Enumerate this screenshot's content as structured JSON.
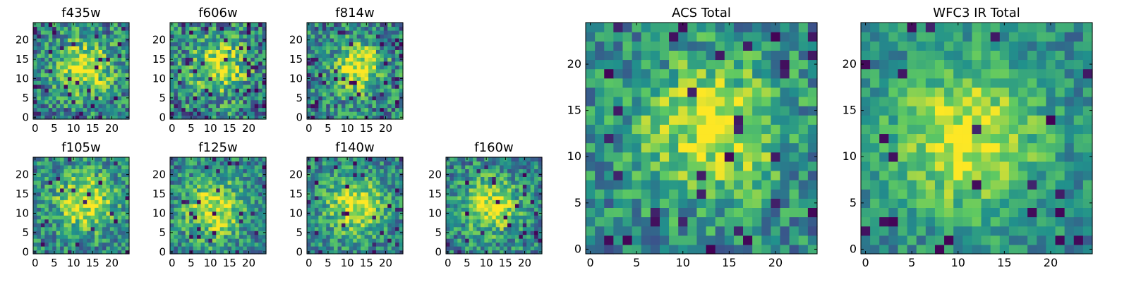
{
  "figure": {
    "colormap": "viridis",
    "colormap_stops": [
      "#440154",
      "#3b528b",
      "#21918c",
      "#5ec962",
      "#fde725"
    ]
  },
  "chart_data": [
    {
      "type": "heatmap",
      "title": "f435w",
      "grid_size": 25,
      "xlim": [
        0,
        24
      ],
      "ylim": [
        0,
        24
      ],
      "xticks": [
        0,
        5,
        10,
        15,
        20
      ],
      "yticks": [
        0,
        5,
        10,
        15,
        20
      ],
      "peak": [
        13,
        13
      ],
      "peak_width": 5.0,
      "noise": 0.3,
      "dark_fraction": 0.05,
      "seed": 11
    },
    {
      "type": "heatmap",
      "title": "f606w",
      "grid_size": 25,
      "xlim": [
        0,
        24
      ],
      "ylim": [
        0,
        24
      ],
      "xticks": [
        0,
        5,
        10,
        15,
        20
      ],
      "yticks": [
        0,
        5,
        10,
        15,
        20
      ],
      "peak": [
        12,
        13
      ],
      "peak_width": 5.0,
      "noise": 0.32,
      "dark_fraction": 0.07,
      "seed": 23
    },
    {
      "type": "heatmap",
      "title": "f814w",
      "grid_size": 25,
      "xlim": [
        0,
        24
      ],
      "ylim": [
        0,
        24
      ],
      "xticks": [
        0,
        5,
        10,
        15,
        20
      ],
      "yticks": [
        0,
        5,
        10,
        15,
        20
      ],
      "peak": [
        13,
        13
      ],
      "peak_width": 4.5,
      "noise": 0.3,
      "dark_fraction": 0.06,
      "seed": 37
    },
    {
      "type": "heatmap",
      "title": "f105w",
      "grid_size": 25,
      "xlim": [
        0,
        24
      ],
      "ylim": [
        0,
        24
      ],
      "xticks": [
        0,
        5,
        10,
        15,
        20
      ],
      "yticks": [
        0,
        5,
        10,
        15,
        20
      ],
      "peak": [
        13,
        13
      ],
      "peak_width": 5.5,
      "noise": 0.26,
      "dark_fraction": 0.04,
      "seed": 41
    },
    {
      "type": "heatmap",
      "title": "f125w",
      "grid_size": 25,
      "xlim": [
        0,
        24
      ],
      "ylim": [
        0,
        24
      ],
      "xticks": [
        0,
        5,
        10,
        15,
        20
      ],
      "yticks": [
        0,
        5,
        10,
        15,
        20
      ],
      "peak": [
        11,
        11
      ],
      "peak_width": 5.5,
      "noise": 0.26,
      "dark_fraction": 0.05,
      "seed": 53
    },
    {
      "type": "heatmap",
      "title": "f140w",
      "grid_size": 25,
      "xlim": [
        0,
        24
      ],
      "ylim": [
        0,
        24
      ],
      "xticks": [
        0,
        5,
        10,
        15,
        20
      ],
      "yticks": [
        0,
        5,
        10,
        15,
        20
      ],
      "peak": [
        12,
        12
      ],
      "peak_width": 5.5,
      "noise": 0.24,
      "dark_fraction": 0.04,
      "seed": 67
    },
    {
      "type": "heatmap",
      "title": "f160w",
      "grid_size": 25,
      "xlim": [
        0,
        24
      ],
      "ylim": [
        0,
        24
      ],
      "xticks": [
        0,
        5,
        10,
        15,
        20
      ],
      "yticks": [
        0,
        5,
        10,
        15,
        20
      ],
      "peak": [
        11,
        12
      ],
      "peak_width": 5.0,
      "noise": 0.26,
      "dark_fraction": 0.04,
      "seed": 79
    },
    {
      "type": "heatmap",
      "title": "ACS Total",
      "grid_size": 25,
      "xlim": [
        0,
        24
      ],
      "ylim": [
        0,
        24
      ],
      "xticks": [
        0,
        5,
        10,
        15,
        20
      ],
      "yticks": [
        0,
        5,
        10,
        15,
        20
      ],
      "peak": [
        13,
        13
      ],
      "peak_width": 5.5,
      "noise": 0.24,
      "dark_fraction": 0.05,
      "seed": 97
    },
    {
      "type": "heatmap",
      "title": "WFC3 IR Total",
      "grid_size": 25,
      "xlim": [
        0,
        24
      ],
      "ylim": [
        0,
        24
      ],
      "xticks": [
        0,
        5,
        10,
        15,
        20
      ],
      "yticks": [
        0,
        5,
        10,
        15,
        20
      ],
      "peak": [
        11,
        12
      ],
      "peak_width": 6.0,
      "noise": 0.18,
      "dark_fraction": 0.04,
      "seed": 113
    }
  ]
}
